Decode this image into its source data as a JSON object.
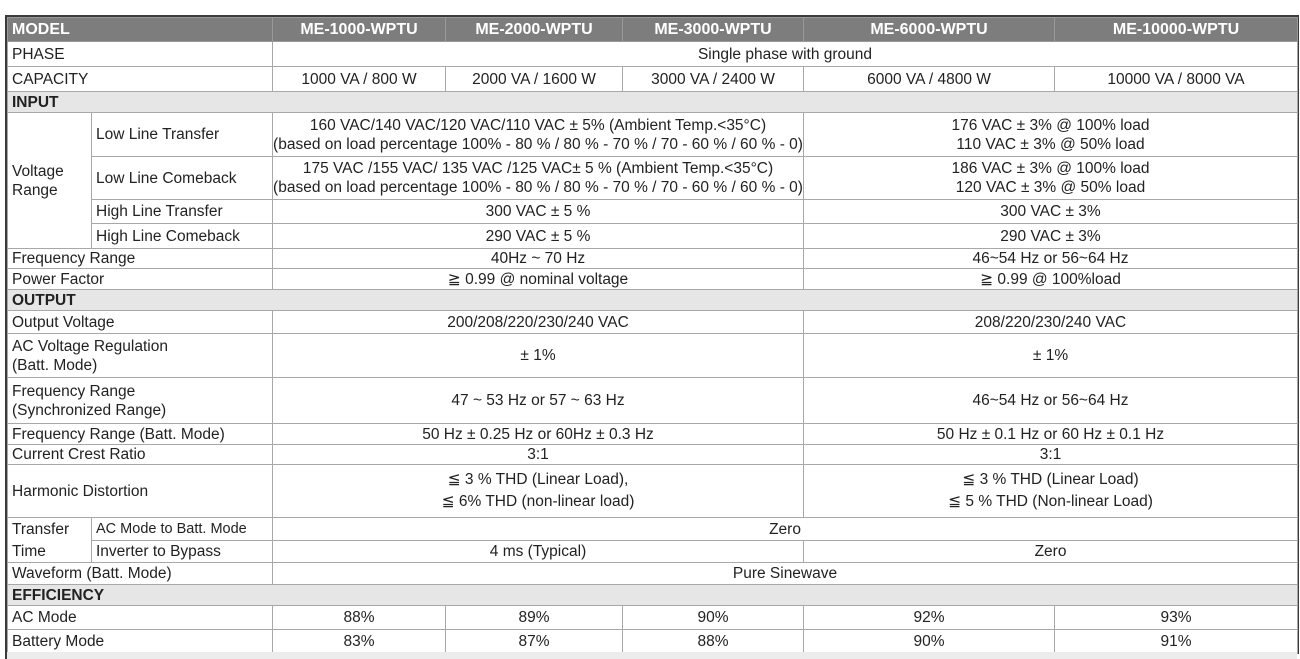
{
  "header": {
    "model": "MODEL",
    "models": [
      "ME-1000-WPTU",
      "ME-2000-WPTU",
      "ME-3000-WPTU",
      "ME-6000-WPTU",
      "ME-10000-WPTU"
    ]
  },
  "phase": {
    "label": "PHASE",
    "value": "Single phase with ground"
  },
  "capacity": {
    "label": "CAPACITY",
    "values": [
      "1000 VA / 800 W",
      "2000 VA / 1600 W",
      "3000 VA / 2400 W",
      "6000 VA / 4800 W",
      "10000 VA / 8000 VA"
    ]
  },
  "input": {
    "section": "INPUT",
    "voltage_range": "Voltage Range",
    "voltage_range_lines": [
      "Voltage",
      "Range"
    ],
    "low_line_transfer": {
      "label": "Low Line Transfer",
      "a": [
        "160 VAC/140 VAC/120 VAC/110 VAC ± 5% (Ambient Temp.<35°C)",
        "(based on load percentage 100% - 80 % / 80 % - 70 % / 70 - 60 % / 60 % - 0)"
      ],
      "b": [
        "176 VAC  ± 3% @ 100% load",
        "110 VAC  ± 3% @ 50% load"
      ]
    },
    "low_line_comeback": {
      "label": "Low Line Comeback",
      "a": [
        "175 VAC /155 VAC/ 135 VAC /125 VAC± 5 % (Ambient Temp.<35°C)",
        "(based on load percentage 100% - 80 % / 80 % - 70 % / 70 - 60 % / 60 % - 0)"
      ],
      "b": [
        "186 VAC  ± 3% @ 100% load",
        "120 VAC  ± 3% @ 50% load"
      ]
    },
    "high_line_transfer": {
      "label": "High Line Transfer",
      "a": "300 VAC ± 5 %",
      "b": "300 VAC  ± 3%"
    },
    "high_line_comeback": {
      "label": "High Line Comeback",
      "a": "290 VAC ± 5 %",
      "b": "290 VAC  ± 3%"
    },
    "frequency_range": {
      "label": "Frequency Range",
      "a": "40Hz ~ 70 Hz",
      "b": "46~54 Hz or 56~64 Hz"
    },
    "power_factor": {
      "label": "Power Factor",
      "a": "≧  0.99 @ nominal voltage",
      "b": "≧ 0.99  @ 100%load"
    }
  },
  "output": {
    "section": "OUTPUT",
    "output_voltage": {
      "label": "Output Voltage",
      "a": "200/208/220/230/240 VAC",
      "b": "208/220/230/240 VAC"
    },
    "ac_regulation": {
      "label": [
        "AC Voltage Regulation",
        "(Batt. Mode)"
      ],
      "a": "± 1%",
      "b": "± 1%"
    },
    "freq_sync": {
      "label": [
        "Frequency Range",
        "(Synchronized Range)"
      ],
      "a": "47 ~ 53 Hz or 57 ~ 63 Hz",
      "b": "46~54 Hz or 56~64 Hz"
    },
    "freq_batt": {
      "label": "Frequency Range (Batt. Mode)",
      "a": "50 Hz ± 0.25 Hz or 60Hz ± 0.3 Hz",
      "b": "50 Hz ± 0.1 Hz or 60 Hz ± 0.1 Hz"
    },
    "crest": {
      "label": "Current Crest Ratio",
      "a": "3:1",
      "b": "3:1"
    },
    "harmonic": {
      "label": "Harmonic Distortion",
      "a": [
        "≦ 3 % THD (Linear Load),",
        "≦  6% THD (non-linear load)"
      ],
      "b": [
        "≦ 3 % THD (Linear Load)",
        "≦ 5 % THD (Non-linear Load)"
      ]
    },
    "transfer_time": {
      "label": [
        "Transfer",
        "Time"
      ],
      "ac_to_batt": {
        "label": "AC Mode to Batt. Mode",
        "value": "Zero"
      },
      "inv_to_bypass": {
        "label": "Inverter to Bypass",
        "a": "4 ms (Typical)",
        "b": "Zero"
      }
    },
    "waveform": {
      "label": "Waveform (Batt. Mode)",
      "value": "Pure Sinewave"
    }
  },
  "efficiency": {
    "section": "EFFICIENCY",
    "ac_mode": {
      "label": "AC Mode",
      "values": [
        "88%",
        "89%",
        "90%",
        "92%",
        "93%"
      ]
    },
    "battery_mode": {
      "label": "Battery Mode",
      "values": [
        "83%",
        "87%",
        "88%",
        "90%",
        "91%"
      ]
    }
  }
}
